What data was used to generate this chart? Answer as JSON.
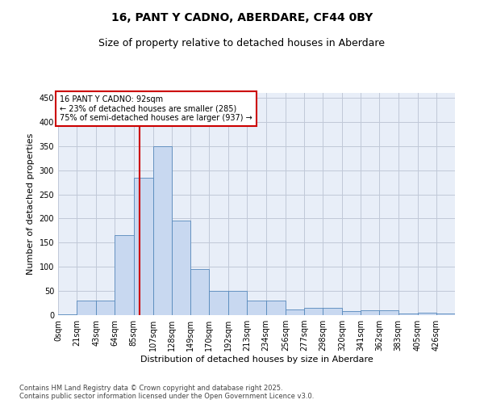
{
  "title": "16, PANT Y CADNO, ABERDARE, CF44 0BY",
  "subtitle": "Size of property relative to detached houses in Aberdare",
  "xlabel": "Distribution of detached houses by size in Aberdare",
  "ylabel": "Number of detached properties",
  "footnote": "Contains HM Land Registry data © Crown copyright and database right 2025.\nContains public sector information licensed under the Open Government Licence v3.0.",
  "bin_labels": [
    "0sqm",
    "21sqm",
    "43sqm",
    "64sqm",
    "85sqm",
    "107sqm",
    "128sqm",
    "149sqm",
    "170sqm",
    "192sqm",
    "213sqm",
    "234sqm",
    "256sqm",
    "277sqm",
    "298sqm",
    "320sqm",
    "341sqm",
    "362sqm",
    "383sqm",
    "405sqm",
    "426sqm"
  ],
  "bin_edges": [
    0,
    21,
    43,
    64,
    85,
    107,
    128,
    149,
    170,
    192,
    213,
    234,
    256,
    277,
    298,
    320,
    341,
    362,
    383,
    405,
    426,
    447
  ],
  "bar_values": [
    2,
    30,
    30,
    165,
    285,
    350,
    195,
    95,
    50,
    50,
    30,
    30,
    12,
    15,
    15,
    8,
    10,
    10,
    4,
    5,
    4
  ],
  "bar_color": "#c8d8f0",
  "bar_edge_color": "#5588bb",
  "property_value": 92,
  "property_label": "16 PANT Y CADNO: 92sqm",
  "annotation_line1": "← 23% of detached houses are smaller (285)",
  "annotation_line2": "75% of semi-detached houses are larger (937) →",
  "vline_color": "#cc0000",
  "annotation_box_color": "#cc0000",
  "ylim": [
    0,
    460
  ],
  "yticks": [
    0,
    50,
    100,
    150,
    200,
    250,
    300,
    350,
    400,
    450
  ],
  "background_color": "#e8eef8",
  "grid_color": "#c0c8d8",
  "title_fontsize": 10,
  "subtitle_fontsize": 9,
  "axis_label_fontsize": 8,
  "tick_fontsize": 7,
  "footnote_fontsize": 6
}
